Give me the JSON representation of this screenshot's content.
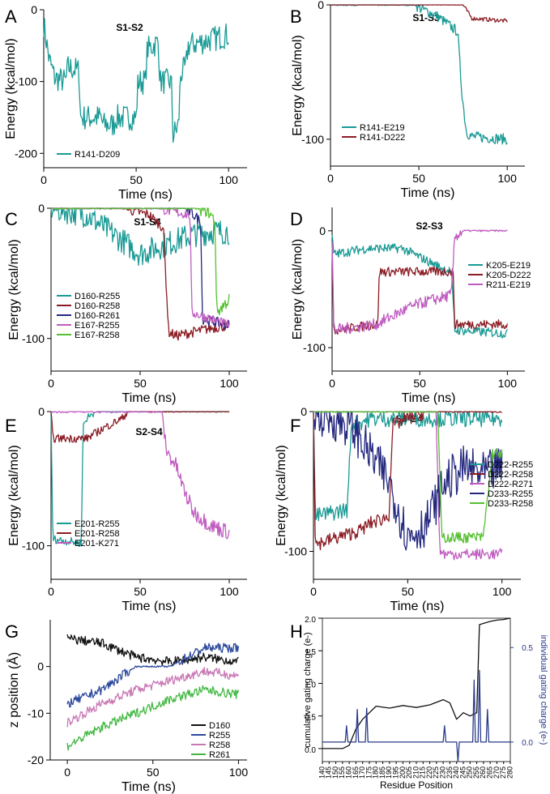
{
  "colors": {
    "teal": "#1a9a95",
    "maroon": "#8b1c24",
    "navy": "#24287e",
    "violet": "#c05cc0",
    "green": "#55c030",
    "black": "#111111",
    "blue": "#2d4a9c",
    "pink": "#c978b5",
    "bright_green": "#44b844",
    "dark_blue": "#2a3a8a"
  },
  "chart_data": [
    {
      "id": "A",
      "type": "line",
      "panel_label": "A",
      "title": "S1-S2",
      "xlabel": "Time (ns)",
      "ylabel": "Energy (kcal/mol)",
      "xlim": [
        0,
        110
      ],
      "ylim": [
        -220,
        0
      ],
      "xticks": [
        0,
        50,
        100
      ],
      "xtick_labels": [
        "0",
        "50",
        "100"
      ],
      "yticks": [
        0,
        -100,
        -200
      ],
      "ytick_labels": [
        "0",
        "-100",
        "-200"
      ],
      "series": [
        {
          "name": "R141-D209",
          "color": "teal",
          "noise": 18,
          "x": [
            0,
            3,
            6,
            12,
            13,
            19,
            20,
            31,
            32,
            38,
            39,
            50,
            51,
            55,
            56,
            62,
            63,
            69,
            70,
            73,
            74,
            77,
            78,
            100
          ],
          "y": [
            -20,
            -70,
            -95,
            -100,
            -80,
            -85,
            -150,
            -150,
            -160,
            -160,
            -150,
            -150,
            -100,
            -100,
            -55,
            -45,
            -100,
            -100,
            -175,
            -160,
            -90,
            -80,
            -50,
            -35
          ]
        }
      ]
    },
    {
      "id": "B",
      "type": "line",
      "panel_label": "B",
      "title": "S1-S3",
      "xlabel": "Time (ns)",
      "ylabel": "Energy (kcal/mol)",
      "xlim": [
        0,
        110
      ],
      "ylim": [
        -120,
        0
      ],
      "xticks": [
        0,
        50,
        100
      ],
      "xtick_labels": [
        "0",
        "50",
        "100"
      ],
      "yticks": [
        0,
        -100
      ],
      "ytick_labels": [
        "0",
        "-100"
      ],
      "series": [
        {
          "name": "R141-E219",
          "color": "teal",
          "noise": 4,
          "x": [
            0,
            48,
            50,
            60,
            72,
            74,
            76,
            77,
            80,
            100
          ],
          "y": [
            0,
            0,
            -2,
            -8,
            -20,
            -60,
            -85,
            -95,
            -98,
            -100
          ]
        },
        {
          "name": "R141-D222",
          "color": "maroon",
          "noise": 1.5,
          "x": [
            0,
            75,
            80,
            100
          ],
          "y": [
            0,
            0,
            -10,
            -12
          ]
        }
      ]
    },
    {
      "id": "C",
      "type": "line",
      "panel_label": "C",
      "title": "S1-S4",
      "xlabel": "Time (ns)",
      "ylabel": "Energy (kcal/mol)",
      "xlim": [
        0,
        110
      ],
      "ylim": [
        -125,
        0
      ],
      "xticks": [
        0,
        50,
        100
      ],
      "xtick_labels": [
        "0",
        "50",
        "100"
      ],
      "yticks": [
        0,
        -100
      ],
      "ytick_labels": [
        "0",
        "-100"
      ],
      "series": [
        {
          "name": "D160-R255",
          "color": "teal",
          "noise": 10,
          "x": [
            0,
            20,
            30,
            40,
            50,
            60,
            70,
            80,
            90,
            100
          ],
          "y": [
            0,
            -5,
            -15,
            -25,
            -35,
            -30,
            -25,
            -20,
            -18,
            -18
          ]
        },
        {
          "name": "D160-R258",
          "color": "maroon",
          "noise": 4,
          "x": [
            0,
            40,
            55,
            63,
            66,
            70,
            80,
            90,
            100
          ],
          "y": [
            0,
            0,
            -5,
            -15,
            -95,
            -98,
            -95,
            -92,
            -90
          ]
        },
        {
          "name": "D160-R261",
          "color": "navy",
          "noise": 4,
          "x": [
            0,
            75,
            80,
            84,
            85,
            100
          ],
          "y": [
            0,
            0,
            -5,
            -10,
            -85,
            -90
          ]
        },
        {
          "name": "E167-R255",
          "color": "violet",
          "noise": 4,
          "x": [
            0,
            60,
            70,
            78,
            79,
            100
          ],
          "y": [
            0,
            0,
            -3,
            -5,
            -80,
            -90
          ]
        },
        {
          "name": "E167-R258",
          "color": "green",
          "noise": 5,
          "x": [
            0,
            80,
            88,
            92,
            93,
            100
          ],
          "y": [
            0,
            0,
            -2,
            -10,
            -80,
            -70
          ]
        }
      ]
    },
    {
      "id": "D",
      "type": "line",
      "panel_label": "D",
      "title": "S2-S3",
      "xlabel": "Time (ns)",
      "ylabel": "Energy (kcal/mol)",
      "xlim": [
        0,
        110
      ],
      "ylim": [
        -120,
        20
      ],
      "xticks": [
        0,
        50,
        100
      ],
      "xtick_labels": [
        "0",
        "50",
        "100"
      ],
      "yticks": [
        0,
        -100
      ],
      "ytick_labels": [
        "0",
        "-100"
      ],
      "series": [
        {
          "name": "K205-E219",
          "color": "teal",
          "noise": 4,
          "x": [
            0,
            1,
            20,
            40,
            60,
            68,
            70,
            100
          ],
          "y": [
            -5,
            -20,
            -15,
            -15,
            -30,
            -35,
            -85,
            -88
          ]
        },
        {
          "name": "K205-D222",
          "color": "maroon",
          "noise": 4,
          "x": [
            0,
            1,
            26,
            27,
            60,
            69,
            70,
            100
          ],
          "y": [
            -10,
            -85,
            -80,
            -35,
            -35,
            -35,
            -80,
            -80
          ]
        },
        {
          "name": "R211-E219",
          "color": "violet",
          "noise": 5,
          "x": [
            0,
            1,
            25,
            45,
            55,
            68,
            70,
            75,
            100
          ],
          "y": [
            -10,
            -85,
            -80,
            -65,
            -60,
            -55,
            -5,
            0,
            0
          ]
        }
      ]
    },
    {
      "id": "E",
      "type": "line",
      "panel_label": "E",
      "title": "S2-S4",
      "xlabel": "Time (ns)",
      "ylabel": "Energy (kcal/mol)",
      "xlim": [
        0,
        110
      ],
      "ylim": [
        -125,
        0
      ],
      "xticks": [
        0,
        50,
        100
      ],
      "xtick_labels": [
        "0",
        "50",
        "100"
      ],
      "yticks": [
        0,
        -100
      ],
      "ytick_labels": [
        "0",
        "-100"
      ],
      "series": [
        {
          "name": "E201-R255",
          "color": "teal",
          "noise": 3,
          "x": [
            0,
            1,
            17,
            18,
            20,
            25,
            100
          ],
          "y": [
            0,
            -95,
            -98,
            -10,
            -5,
            0,
            0
          ]
        },
        {
          "name": "E201-R258",
          "color": "maroon",
          "noise": 3,
          "x": [
            0,
            1,
            20,
            30,
            40,
            43,
            45,
            100
          ],
          "y": [
            0,
            -20,
            -20,
            -12,
            -5,
            0,
            0,
            0
          ]
        },
        {
          "name": "E201-K271",
          "color": "violet",
          "noise": 6,
          "x": [
            0,
            62,
            65,
            70,
            75,
            80,
            90,
            100
          ],
          "y": [
            0,
            0,
            -30,
            -40,
            -60,
            -75,
            -85,
            -90
          ]
        }
      ]
    },
    {
      "id": "F",
      "type": "line",
      "panel_label": "F",
      "title": "S3-S4",
      "xlabel": "Time (ns)",
      "ylabel": "Energy (kcal/mol)",
      "xlim": [
        0,
        110
      ],
      "ylim": [
        -120,
        0
      ],
      "xticks": [
        0,
        50,
        100
      ],
      "xtick_labels": [
        "0",
        "50",
        "100"
      ],
      "yticks": [
        0,
        -100
      ],
      "ytick_labels": [
        "0",
        "-100"
      ],
      "series": [
        {
          "name": "D222-R255",
          "color": "teal",
          "noise": 6,
          "x": [
            0,
            1,
            18,
            20,
            30,
            100
          ],
          "y": [
            0,
            -75,
            -70,
            -10,
            -5,
            -5
          ]
        },
        {
          "name": "D222-R258",
          "color": "maroon",
          "noise": 5,
          "x": [
            0,
            1,
            25,
            30,
            40,
            42,
            50,
            60,
            100
          ],
          "y": [
            0,
            -95,
            -85,
            -80,
            -75,
            -10,
            -5,
            0,
            0
          ]
        },
        {
          "name": "D222-R271",
          "color": "violet",
          "noise": 4,
          "x": [
            0,
            65,
            67,
            70,
            100
          ],
          "y": [
            0,
            0,
            -100,
            -102,
            -102
          ]
        },
        {
          "name": "D233-R255",
          "color": "navy",
          "noise": 16,
          "x": [
            0,
            20,
            30,
            40,
            45,
            50,
            60,
            70,
            80,
            90,
            100
          ],
          "y": [
            0,
            -10,
            -30,
            -50,
            -70,
            -90,
            -80,
            -50,
            -40,
            -45,
            -40
          ]
        },
        {
          "name": "D233-R258",
          "color": "green",
          "noise": 4,
          "x": [
            0,
            66,
            68,
            90,
            95,
            100
          ],
          "y": [
            0,
            0,
            -90,
            -90,
            -30,
            -30
          ]
        }
      ]
    },
    {
      "id": "G",
      "type": "line",
      "panel_label": "G",
      "title": "",
      "xlabel": "Time (ns)",
      "ylabel": "z position (Å)",
      "xlim": [
        -10,
        105
      ],
      "ylim": [
        -20,
        10
      ],
      "xticks": [
        0,
        50,
        100
      ],
      "xtick_labels": [
        "0",
        "50",
        "100"
      ],
      "yticks": [
        0,
        -10,
        -20
      ],
      "ytick_labels": [
        "0",
        "-10",
        "-20"
      ],
      "series": [
        {
          "name": "D160",
          "color": "black",
          "noise": 1,
          "x": [
            0,
            20,
            40,
            60,
            80,
            100
          ],
          "y": [
            6,
            5,
            2,
            1,
            2,
            1
          ]
        },
        {
          "name": "R255",
          "color": "blue",
          "noise": 1,
          "x": [
            0,
            20,
            40,
            60,
            80,
            100
          ],
          "y": [
            -8,
            -5,
            0,
            0,
            4,
            4
          ]
        },
        {
          "name": "R258",
          "color": "pink",
          "noise": 1,
          "x": [
            0,
            20,
            40,
            60,
            80,
            100
          ],
          "y": [
            -12,
            -8,
            -5,
            -3,
            -1,
            -2
          ]
        },
        {
          "name": "R261",
          "color": "bright_green",
          "noise": 1,
          "x": [
            0,
            20,
            40,
            60,
            80,
            100
          ],
          "y": [
            -17,
            -13,
            -10,
            -7,
            -5,
            -6
          ]
        }
      ]
    },
    {
      "id": "H",
      "type": "line",
      "panel_label": "H",
      "title": "",
      "xlabel": "Residue Position",
      "ylabel": "cumulative gating charge (e-)",
      "ylabel_right": "individual gating charge (e-)",
      "xlim": [
        140,
        280
      ],
      "ylim": [
        -0.2,
        2.0
      ],
      "xticks": [
        140,
        145,
        150,
        155,
        160,
        165,
        170,
        175,
        180,
        185,
        190,
        195,
        200,
        205,
        210,
        215,
        220,
        225,
        230,
        235,
        240,
        245,
        250,
        255,
        260,
        265,
        270,
        275,
        280
      ],
      "xtick_labels": [
        "140",
        "145",
        "150",
        "155",
        "160",
        "165",
        "170",
        "175",
        "180",
        "185",
        "190",
        "195",
        "200",
        "205",
        "210",
        "215",
        "220",
        "225",
        "230",
        "235",
        "240",
        "245",
        "250",
        "255",
        "260",
        "265",
        "270",
        "275",
        "280"
      ],
      "yticks": [
        0.0,
        0.5,
        1.0,
        1.5,
        2.0
      ],
      "ytick_labels": [
        "0.0",
        "0.5",
        "1.0",
        "1.5",
        "2.0"
      ],
      "yticks_right_at": [
        0.1,
        1.55
      ],
      "ytick_right_labels": [
        "0.0",
        "0.5"
      ],
      "series": [
        {
          "name": "cumulative",
          "color": "black",
          "noise": 0,
          "x": [
            140,
            155,
            160,
            165,
            170,
            175,
            180,
            190,
            200,
            210,
            220,
            230,
            235,
            240,
            245,
            250,
            255,
            257,
            260,
            265,
            270,
            275,
            280
          ],
          "y": [
            0.0,
            0.0,
            0.05,
            0.3,
            0.45,
            0.55,
            0.65,
            0.62,
            0.66,
            0.63,
            0.67,
            0.75,
            0.7,
            0.45,
            0.55,
            0.5,
            0.55,
            1.9,
            1.92,
            1.95,
            1.97,
            1.98,
            2.0
          ]
        },
        {
          "name": "individual",
          "color": "dark_blue",
          "noise": 0,
          "x": [
            140,
            157,
            158,
            159,
            165,
            166,
            167,
            172,
            173,
            174,
            200,
            230,
            231,
            232,
            240,
            241,
            242,
            252,
            253,
            254,
            256,
            257,
            258,
            262,
            263,
            264,
            280
          ],
          "y": [
            0.1,
            0.1,
            0.35,
            0.1,
            0.1,
            0.6,
            0.1,
            0.1,
            0.62,
            0.1,
            0.1,
            0.1,
            0.35,
            0.1,
            0.1,
            -0.2,
            0.1,
            0.1,
            1.05,
            0.1,
            0.1,
            1.2,
            0.1,
            0.1,
            0.6,
            0.1,
            0.1
          ]
        }
      ]
    }
  ]
}
